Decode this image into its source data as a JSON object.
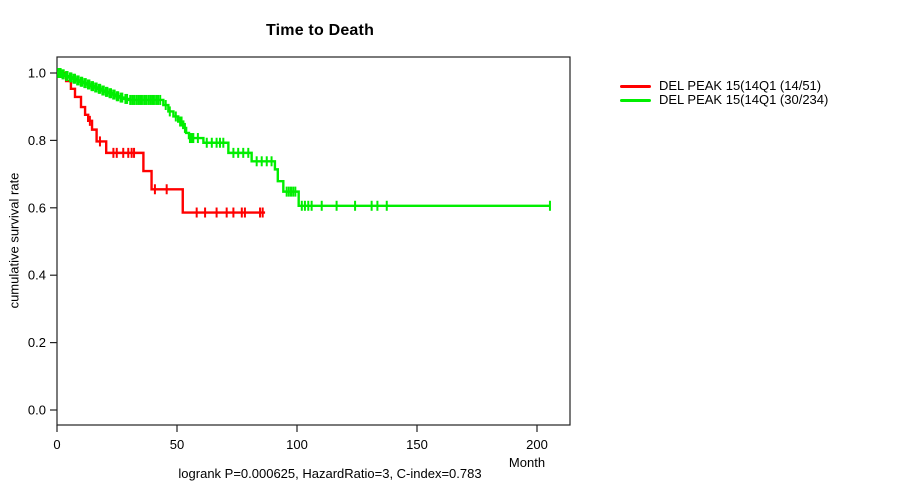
{
  "title": "Time to Death",
  "subtitle": "logrank P=0.000625, HazardRatio=3, C-index=0.783",
  "axes": {
    "y_label": "cumulative survival rate",
    "x_label": "Month"
  },
  "legend": {
    "position": "top-right-outside",
    "items": [
      {
        "label": "DEL PEAK 15(14Q1 (14/51)",
        "color": "#ff0000"
      },
      {
        "label": "DEL PEAK 15(14Q1 (30/234)",
        "color": "#00ee00"
      }
    ]
  },
  "chart_data": {
    "type": "line",
    "subtype": "kaplan-meier-step",
    "title": "Time to Death",
    "xlabel": "Month",
    "ylabel": "cumulative survival rate",
    "x_ticks": [
      0,
      50,
      100,
      150,
      200
    ],
    "y_ticks": [
      0.0,
      0.2,
      0.4,
      0.6,
      0.8,
      1.0
    ],
    "xlim": [
      0,
      213.75
    ],
    "ylim": [
      -0.045,
      1.047
    ],
    "grid": false,
    "annotation": "logrank P=0.000625, HazardRatio=3, C-index=0.783",
    "series": [
      {
        "name": "DEL PEAK 15(14Q1 (14/51)",
        "color": "#ff0000",
        "events": "14/51",
        "end_month": 86.7,
        "steps": [
          [
            0,
            1.0
          ],
          [
            3.8,
            0.976
          ],
          [
            5.8,
            0.953
          ],
          [
            7.5,
            0.929
          ],
          [
            10,
            0.899
          ],
          [
            11.7,
            0.876
          ],
          [
            13,
            0.858
          ],
          [
            14.6,
            0.832
          ],
          [
            16.5,
            0.797
          ],
          [
            20.5,
            0.763
          ],
          [
            36,
            0.709
          ],
          [
            39.4,
            0.655
          ],
          [
            52.4,
            0.586
          ]
        ],
        "censor_marks": [
          [
            13.7,
            0.858
          ],
          [
            17.9,
            0.797
          ],
          [
            23.5,
            0.763
          ],
          [
            24.9,
            0.763
          ],
          [
            27.6,
            0.763
          ],
          [
            29.7,
            0.763
          ],
          [
            31.1,
            0.763
          ],
          [
            32.1,
            0.763
          ],
          [
            40.8,
            0.655
          ],
          [
            45.7,
            0.655
          ],
          [
            58.2,
            0.586
          ],
          [
            61.7,
            0.586
          ],
          [
            66.5,
            0.586
          ],
          [
            70.7,
            0.586
          ],
          [
            73.5,
            0.586
          ],
          [
            77,
            0.586
          ],
          [
            78.3,
            0.586
          ],
          [
            84.6,
            0.586
          ],
          [
            85.7,
            0.586
          ]
        ]
      },
      {
        "name": "DEL PEAK 15(14Q1 (30/234)",
        "color": "#00ee00",
        "events": "30/234",
        "end_month": 205.4,
        "steps": [
          [
            0,
            1.0
          ],
          [
            2,
            0.996
          ],
          [
            3.5,
            0.991
          ],
          [
            5,
            0.987
          ],
          [
            6.5,
            0.983
          ],
          [
            8,
            0.978
          ],
          [
            9.5,
            0.974
          ],
          [
            11,
            0.97
          ],
          [
            12.5,
            0.966
          ],
          [
            14,
            0.961
          ],
          [
            15.5,
            0.957
          ],
          [
            17,
            0.953
          ],
          [
            18.5,
            0.948
          ],
          [
            20,
            0.944
          ],
          [
            21.5,
            0.94
          ],
          [
            23,
            0.936
          ],
          [
            24.5,
            0.931
          ],
          [
            26,
            0.927
          ],
          [
            28,
            0.923
          ],
          [
            30,
            0.92
          ],
          [
            44.3,
            0.905
          ],
          [
            46.4,
            0.886
          ],
          [
            48.5,
            0.871
          ],
          [
            50.5,
            0.856
          ],
          [
            52.6,
            0.837
          ],
          [
            53.8,
            0.822
          ],
          [
            55,
            0.807
          ],
          [
            61,
            0.793
          ],
          [
            71.4,
            0.763
          ],
          [
            81.1,
            0.738
          ],
          [
            90.8,
            0.714
          ],
          [
            92,
            0.679
          ],
          [
            94.3,
            0.648
          ],
          [
            100.7,
            0.606
          ]
        ],
        "censor_marks": [
          [
            0.5,
            1.0
          ],
          [
            1.0,
            1.0
          ],
          [
            1.5,
            1.0
          ],
          [
            2.3,
            0.996
          ],
          [
            2.8,
            0.996
          ],
          [
            3.8,
            0.991
          ],
          [
            4.4,
            0.991
          ],
          [
            5.4,
            0.987
          ],
          [
            6.0,
            0.987
          ],
          [
            6.9,
            0.983
          ],
          [
            7.5,
            0.983
          ],
          [
            8.4,
            0.978
          ],
          [
            9.0,
            0.978
          ],
          [
            9.9,
            0.974
          ],
          [
            10.5,
            0.974
          ],
          [
            11.4,
            0.97
          ],
          [
            12.0,
            0.97
          ],
          [
            12.9,
            0.966
          ],
          [
            13.5,
            0.966
          ],
          [
            14.4,
            0.961
          ],
          [
            15.0,
            0.961
          ],
          [
            15.9,
            0.957
          ],
          [
            16.5,
            0.957
          ],
          [
            17.4,
            0.953
          ],
          [
            18.0,
            0.953
          ],
          [
            18.9,
            0.948
          ],
          [
            19.5,
            0.948
          ],
          [
            20.4,
            0.944
          ],
          [
            21.0,
            0.944
          ],
          [
            21.9,
            0.94
          ],
          [
            22.5,
            0.94
          ],
          [
            23.4,
            0.936
          ],
          [
            24.0,
            0.936
          ],
          [
            24.9,
            0.931
          ],
          [
            25.5,
            0.931
          ],
          [
            26.5,
            0.927
          ],
          [
            27.2,
            0.927
          ],
          [
            28.5,
            0.923
          ],
          [
            29.2,
            0.923
          ],
          [
            30.5,
            0.92
          ],
          [
            31.3,
            0.92
          ],
          [
            32.1,
            0.92
          ],
          [
            33,
            0.92
          ],
          [
            33.8,
            0.92
          ],
          [
            34.6,
            0.92
          ],
          [
            35.4,
            0.92
          ],
          [
            36.3,
            0.92
          ],
          [
            37.1,
            0.92
          ],
          [
            38,
            0.92
          ],
          [
            38.8,
            0.92
          ],
          [
            39.6,
            0.92
          ],
          [
            40.4,
            0.92
          ],
          [
            41.3,
            0.92
          ],
          [
            42.1,
            0.92
          ],
          [
            43,
            0.92
          ],
          [
            45.3,
            0.905
          ],
          [
            47,
            0.886
          ],
          [
            49.5,
            0.871
          ],
          [
            51.3,
            0.856
          ],
          [
            51.9,
            0.856
          ],
          [
            53.3,
            0.837
          ],
          [
            55.4,
            0.807
          ],
          [
            56.1,
            0.807
          ],
          [
            56.8,
            0.807
          ],
          [
            58.7,
            0.807
          ],
          [
            62.4,
            0.793
          ],
          [
            64.5,
            0.793
          ],
          [
            66.5,
            0.793
          ],
          [
            67.9,
            0.793
          ],
          [
            69.3,
            0.793
          ],
          [
            73.5,
            0.763
          ],
          [
            75.5,
            0.763
          ],
          [
            77.6,
            0.763
          ],
          [
            79.7,
            0.763
          ],
          [
            83.2,
            0.738
          ],
          [
            85.3,
            0.738
          ],
          [
            87.4,
            0.738
          ],
          [
            89.4,
            0.738
          ],
          [
            95.7,
            0.648
          ],
          [
            96.6,
            0.648
          ],
          [
            97.5,
            0.648
          ],
          [
            98.4,
            0.648
          ],
          [
            99.3,
            0.648
          ],
          [
            102,
            0.606
          ],
          [
            103.3,
            0.606
          ],
          [
            104.7,
            0.606
          ],
          [
            106.1,
            0.606
          ],
          [
            110.3,
            0.606
          ],
          [
            116.5,
            0.606
          ],
          [
            124.2,
            0.606
          ],
          [
            131.1,
            0.606
          ],
          [
            133.5,
            0.606
          ],
          [
            137.4,
            0.606
          ],
          [
            205.4,
            0.606
          ]
        ]
      }
    ]
  }
}
